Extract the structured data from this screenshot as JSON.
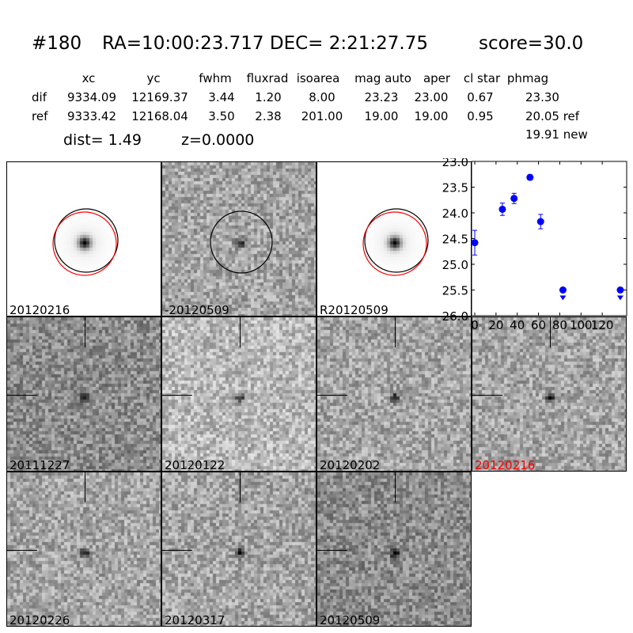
{
  "header": {
    "id": "#180",
    "coords": "RA=10:00:23.717 DEC= 2:21:27.75",
    "score": "score=30.0"
  },
  "table": {
    "columns": [
      "xc",
      "yc",
      "fwhm",
      "fluxrad",
      "isoarea",
      "mag auto",
      "aper",
      "cl star",
      "phmag"
    ],
    "rows": [
      {
        "label": "dif",
        "values": [
          "9334.09",
          "12169.37",
          "3.44",
          "1.20",
          "8.00",
          "23.23",
          "23.00",
          "0.67",
          "23.30"
        ]
      },
      {
        "label": "ref",
        "values": [
          "9333.42",
          "12168.04",
          "3.50",
          "2.38",
          "201.00",
          "19.00",
          "19.00",
          "0.95",
          "20.05 ref"
        ]
      }
    ],
    "new_phmag": "19.91 new",
    "dist": "dist=  1.49",
    "z": "z=0.0000"
  },
  "stamps": [
    {
      "label": "20120216",
      "type": "ref"
    },
    {
      "label": "-20120509",
      "type": "diff"
    },
    {
      "label": "R20120509",
      "type": "ref"
    },
    {
      "label": "20111227",
      "type": "epoch"
    },
    {
      "label": "20120122",
      "type": "epoch"
    },
    {
      "label": "20120202",
      "type": "epoch"
    },
    {
      "label": "20120216",
      "type": "epoch",
      "highlight": true
    },
    {
      "label": "20120226",
      "type": "epoch"
    },
    {
      "label": "20120317",
      "type": "epoch"
    },
    {
      "label": "20120509",
      "type": "epoch"
    }
  ],
  "colors": {
    "highlight": "#ff0000",
    "points": "#0000ff",
    "circle_black": "#000000",
    "circle_red": "#ff0000"
  },
  "chart_data": {
    "type": "scatter",
    "xlim": [
      -3,
      143
    ],
    "ylim": [
      26.0,
      23.0
    ],
    "y_inverted": true,
    "xticks": [
      "0",
      "20",
      "40",
      "60",
      "80",
      "100",
      "120"
    ],
    "yticks": [
      "23.0",
      "23.5",
      "24.0",
      "24.5",
      "25.0",
      "25.5",
      "26.0"
    ],
    "points": [
      {
        "x": 0,
        "y": 24.58,
        "err": 0.24
      },
      {
        "x": 26,
        "y": 23.93,
        "err": 0.12
      },
      {
        "x": 37,
        "y": 23.72,
        "err": 0.1
      },
      {
        "x": 52,
        "y": 23.31,
        "err": 0.05
      },
      {
        "x": 62,
        "y": 24.17,
        "err": 0.14
      }
    ],
    "upper_limits": [
      {
        "x": 83,
        "y": 25.5
      },
      {
        "x": 137,
        "y": 25.5
      }
    ]
  }
}
